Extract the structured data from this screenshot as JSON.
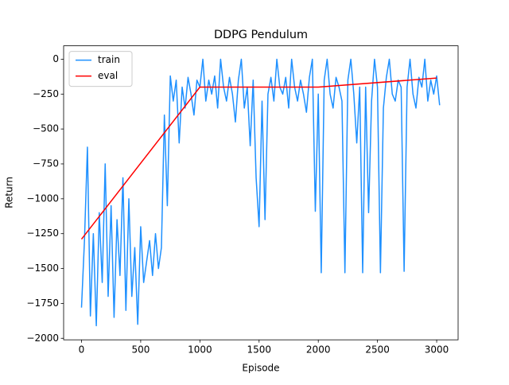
{
  "chart_data": {
    "type": "line",
    "title": "DDPG Pendulum",
    "xlabel": "Episode",
    "ylabel": "Return",
    "xlim": [
      -151,
      3181
    ],
    "ylim": [
      -2011,
      96
    ],
    "xticks": [
      0,
      500,
      1000,
      1500,
      2000,
      2500,
      3000
    ],
    "yticks": [
      0,
      {
        "value": -250,
        "label": "−250"
      },
      {
        "value": -500,
        "label": "−500"
      },
      {
        "value": -750,
        "label": "−750"
      },
      {
        "value": -1000,
        "label": "−1000"
      },
      {
        "value": -1250,
        "label": "−1250"
      },
      {
        "value": -1500,
        "label": "−1500"
      },
      {
        "value": -1750,
        "label": "−1750"
      },
      {
        "value": -2000,
        "label": "−2000"
      }
    ],
    "legend": "upper left",
    "series": [
      {
        "name": "train",
        "color": "#1e90ff",
        "x": [
          0,
          25,
          50,
          75,
          100,
          125,
          150,
          175,
          200,
          225,
          250,
          275,
          300,
          325,
          350,
          375,
          400,
          425,
          450,
          475,
          500,
          525,
          550,
          575,
          600,
          625,
          650,
          675,
          700,
          725,
          750,
          775,
          800,
          825,
          850,
          875,
          900,
          925,
          950,
          975,
          1000,
          1025,
          1050,
          1075,
          1100,
          1125,
          1150,
          1175,
          1200,
          1225,
          1250,
          1275,
          1300,
          1325,
          1350,
          1375,
          1400,
          1425,
          1450,
          1475,
          1500,
          1525,
          1550,
          1575,
          1600,
          1625,
          1650,
          1675,
          1700,
          1725,
          1750,
          1775,
          1800,
          1825,
          1850,
          1875,
          1900,
          1925,
          1950,
          1975,
          2000,
          2025,
          2050,
          2075,
          2100,
          2125,
          2150,
          2175,
          2200,
          2225,
          2250,
          2275,
          2300,
          2325,
          2350,
          2375,
          2400,
          2425,
          2450,
          2475,
          2500,
          2525,
          2550,
          2575,
          2600,
          2625,
          2650,
          2675,
          2700,
          2725,
          2750,
          2775,
          2800,
          2825,
          2850,
          2875,
          2900,
          2925,
          2950,
          2975,
          3000,
          3025
        ],
        "values": [
          -1780,
          -1300,
          -630,
          -1840,
          -1250,
          -1910,
          -1100,
          -1600,
          -750,
          -1700,
          -1050,
          -1850,
          -1150,
          -1550,
          -850,
          -1800,
          -1000,
          -1700,
          -1350,
          -1900,
          -1200,
          -1600,
          -1450,
          -1300,
          -1550,
          -1250,
          -1500,
          -1350,
          -400,
          -1050,
          -120,
          -300,
          -150,
          -600,
          -200,
          -350,
          -130,
          -250,
          -400,
          -150,
          -200,
          0,
          -300,
          -150,
          -250,
          -120,
          -350,
          0,
          -200,
          -300,
          -130,
          -250,
          -450,
          -150,
          0,
          -350,
          -200,
          -620,
          -150,
          -850,
          -1200,
          -300,
          -1150,
          -250,
          -130,
          -300,
          0,
          -200,
          -250,
          -130,
          -350,
          0,
          -200,
          -300,
          -150,
          -250,
          -380,
          -130,
          0,
          -1090,
          -250,
          -1530,
          -150,
          0,
          -250,
          -350,
          -130,
          -200,
          -300,
          -1530,
          -150,
          0,
          -250,
          -600,
          -200,
          -1530,
          -200,
          -1100,
          -300,
          0,
          -200,
          -1530,
          -350,
          -130,
          0,
          -250,
          -300,
          -150,
          -200,
          -1520,
          -200,
          0,
          -250,
          -350,
          -130,
          -200,
          0,
          -300,
          -150,
          -250,
          -120,
          -330
        ]
      },
      {
        "name": "eval",
        "color": "#ff0000",
        "x": [
          0,
          1000,
          2000,
          3000
        ],
        "values": [
          -1290,
          -200,
          -200,
          -135
        ]
      }
    ]
  }
}
